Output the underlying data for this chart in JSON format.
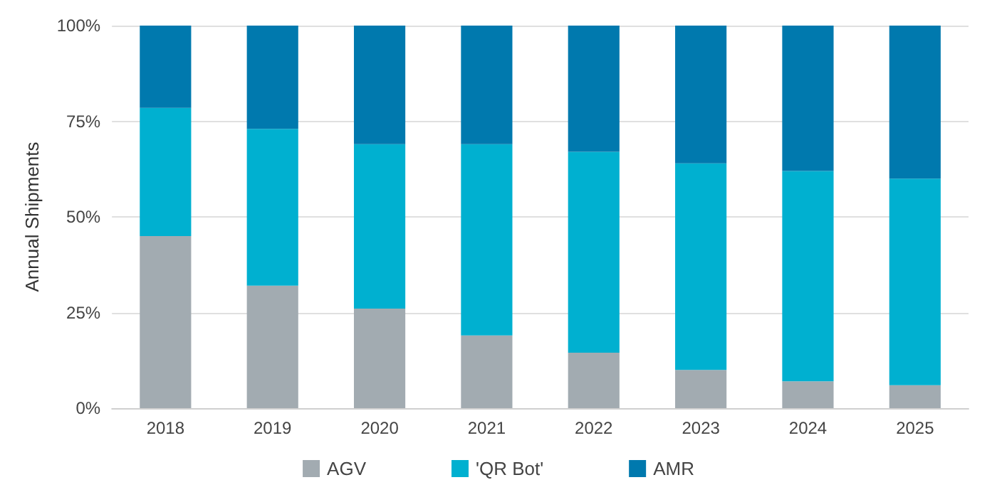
{
  "chart_data": {
    "type": "bar",
    "stacked": true,
    "ylabel": "Annual Shipments",
    "categories": [
      "2018",
      "2019",
      "2020",
      "2021",
      "2022",
      "2023",
      "2024",
      "2025"
    ],
    "series": [
      {
        "name": "AGV",
        "color": "#a2abb1",
        "values": [
          45,
          32,
          26,
          19,
          14.5,
          10,
          7,
          6
        ]
      },
      {
        "name": "'QR Bot'",
        "color": "#00b0d0",
        "values": [
          33.5,
          41,
          43,
          50,
          52.5,
          54,
          55,
          54
        ]
      },
      {
        "name": "AMR",
        "color": "#0079ae",
        "values": [
          21.5,
          27,
          31,
          31,
          33,
          36,
          38,
          40
        ]
      }
    ],
    "ylim": [
      0,
      100
    ],
    "yticks": [
      {
        "value": 0,
        "label": "0%"
      },
      {
        "value": 25,
        "label": "25%"
      },
      {
        "value": 50,
        "label": "50%"
      },
      {
        "value": 75,
        "label": "75%"
      },
      {
        "value": 100,
        "label": "100%"
      }
    ],
    "grid": "y",
    "legend": "bottom"
  }
}
